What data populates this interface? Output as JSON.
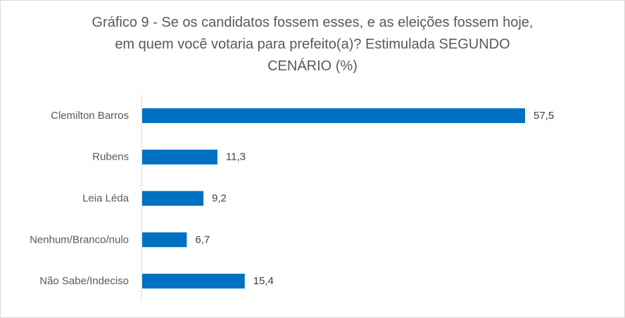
{
  "chart_data": {
    "type": "bar",
    "orientation": "horizontal",
    "title_lines": [
      "Gráfico 9 - Se os candidatos fossem esses, e as eleições fossem hoje,",
      "em quem você votaria para prefeito(a)? Estimulada SEGUNDO",
      "CENÁRIO (%)"
    ],
    "categories": [
      "Clemilton Barros",
      "Rubens",
      "Leia Léda",
      "Nenhum/Branco/nulo",
      "Não Sabe/Indeciso"
    ],
    "values": [
      57.5,
      11.3,
      9.2,
      6.7,
      15.4
    ],
    "value_labels": [
      "57,5",
      "11,3",
      "9,2",
      "6,7",
      "15,4"
    ],
    "xlim": [
      0,
      62
    ],
    "xlabel": "",
    "ylabel": "",
    "grid": false,
    "legend": "none",
    "bar_color": "#0070c0",
    "axis_color": "#d9d9d9"
  }
}
